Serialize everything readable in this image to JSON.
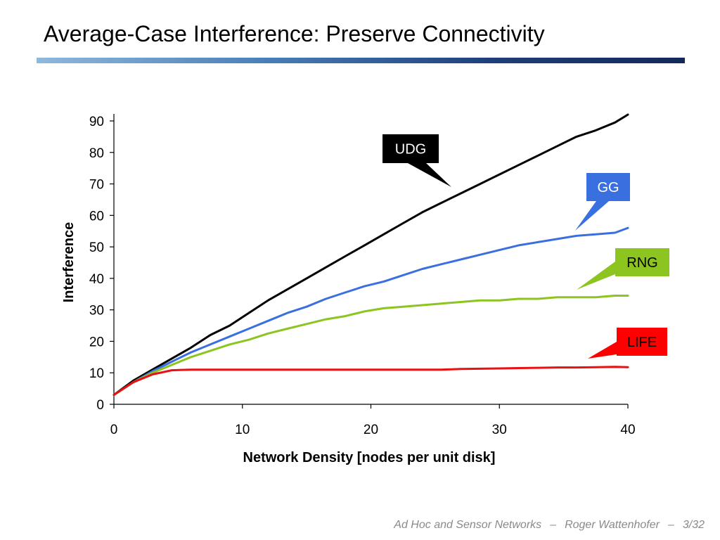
{
  "slide": {
    "title": "Average-Case Interference: Preserve Connectivity"
  },
  "footer": {
    "course": "Ad Hoc and Sensor Networks",
    "separator": "–",
    "author": "Roger Wattenhofer",
    "page": "3/32"
  },
  "chart_data": {
    "type": "line",
    "xlabel": "Network Density [nodes per unit disk]",
    "ylabel": "Interference",
    "xlim": [
      0,
      40
    ],
    "ylim": [
      0,
      90
    ],
    "xticks": [
      0,
      10,
      20,
      30,
      40
    ],
    "yticks": [
      0,
      10,
      20,
      30,
      40,
      50,
      60,
      70,
      80,
      90
    ],
    "grid": false,
    "legend": "callouts",
    "x": [
      0,
      1.5,
      3,
      4.5,
      6,
      7.5,
      9,
      10.5,
      12,
      13.5,
      15,
      16.5,
      18,
      19.5,
      21,
      22.5,
      24,
      25.5,
      27,
      28.5,
      30,
      31.5,
      33,
      34.5,
      36,
      37.5,
      39,
      40
    ],
    "series": [
      {
        "name": "UDG",
        "color": "#000000",
        "label_bg": "#000000",
        "label_fg": "#ffffff",
        "values": [
          3,
          7.5,
          11,
          14.5,
          18,
          22,
          25,
          29,
          33,
          36.5,
          40,
          43.5,
          47,
          50.5,
          54,
          57.5,
          61,
          64,
          67,
          70,
          73,
          76,
          79,
          82,
          85,
          87,
          89.5,
          92
        ]
      },
      {
        "name": "GG",
        "color": "#3a6fe0",
        "label_bg": "#3a6fe0",
        "label_fg": "#ffffff",
        "values": [
          3,
          7,
          10.5,
          13.5,
          16.5,
          19,
          21.5,
          24,
          26.5,
          29,
          31,
          33.5,
          35.5,
          37.5,
          39,
          41,
          43,
          44.5,
          46,
          47.5,
          49,
          50.5,
          51.5,
          52.5,
          53.5,
          54,
          54.5,
          56
        ]
      },
      {
        "name": "RNG",
        "color": "#8cc420",
        "label_bg": "#8cc420",
        "label_fg": "#000000",
        "values": [
          3,
          7,
          10,
          12.5,
          15,
          17,
          19,
          20.5,
          22.5,
          24,
          25.5,
          27,
          28,
          29.5,
          30.5,
          31,
          31.5,
          32,
          32.5,
          33,
          33,
          33.5,
          33.5,
          34,
          34,
          34,
          34.5,
          34.5
        ]
      },
      {
        "name": "LIFE",
        "color": "#e81010",
        "label_bg": "#ff0000",
        "label_fg": "#000000",
        "values": [
          3,
          7,
          9.5,
          10.8,
          11,
          11,
          11,
          11,
          11,
          11,
          11,
          11,
          11,
          11,
          11,
          11,
          11,
          11,
          11.2,
          11.3,
          11.4,
          11.5,
          11.6,
          11.7,
          11.7,
          11.8,
          11.9,
          11.8
        ]
      }
    ]
  }
}
